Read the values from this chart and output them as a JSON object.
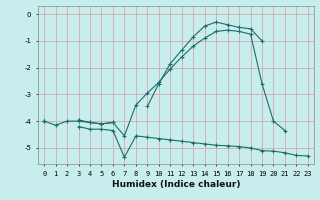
{
  "xlabel": "Humidex (Indice chaleur)",
  "bg_color": "#c8eded",
  "grid_color": "#d8a8a8",
  "line_color": "#1a6e6a",
  "x_values": [
    0,
    1,
    2,
    3,
    4,
    5,
    6,
    7,
    8,
    9,
    10,
    11,
    12,
    13,
    14,
    15,
    16,
    17,
    18,
    19,
    20,
    21,
    22,
    23
  ],
  "line1": [
    -4.0,
    -4.15,
    -4.0,
    -4.0,
    -4.05,
    -4.1,
    -4.05,
    null,
    null,
    -3.45,
    -2.6,
    -1.85,
    -1.35,
    -0.85,
    -0.45,
    -0.3,
    -0.4,
    -0.5,
    -0.55,
    -1.0,
    null,
    null,
    null,
    null
  ],
  "line2": [
    -4.0,
    null,
    null,
    -3.95,
    -4.05,
    -4.1,
    -4.05,
    -4.55,
    -3.4,
    -2.95,
    -2.55,
    -2.05,
    -1.6,
    -1.2,
    -0.9,
    -0.65,
    -0.6,
    -0.65,
    -0.75,
    -2.6,
    -4.0,
    -4.35,
    null,
    null
  ],
  "line3": [
    -4.0,
    null,
    null,
    -4.2,
    -4.3,
    -4.3,
    -4.35,
    -5.35,
    -4.55,
    -4.6,
    -4.65,
    -4.7,
    -4.75,
    -4.8,
    -4.85,
    -4.9,
    -4.92,
    -4.95,
    -5.0,
    -5.1,
    -5.12,
    -5.18,
    -5.28,
    -5.3
  ],
  "xlim": [
    -0.5,
    23.5
  ],
  "ylim": [
    -5.6,
    0.3
  ],
  "yticks": [
    0,
    -1,
    -2,
    -3,
    -4,
    -5
  ],
  "xticks": [
    0,
    1,
    2,
    3,
    4,
    5,
    6,
    7,
    8,
    9,
    10,
    11,
    12,
    13,
    14,
    15,
    16,
    17,
    18,
    19,
    20,
    21,
    22,
    23
  ]
}
